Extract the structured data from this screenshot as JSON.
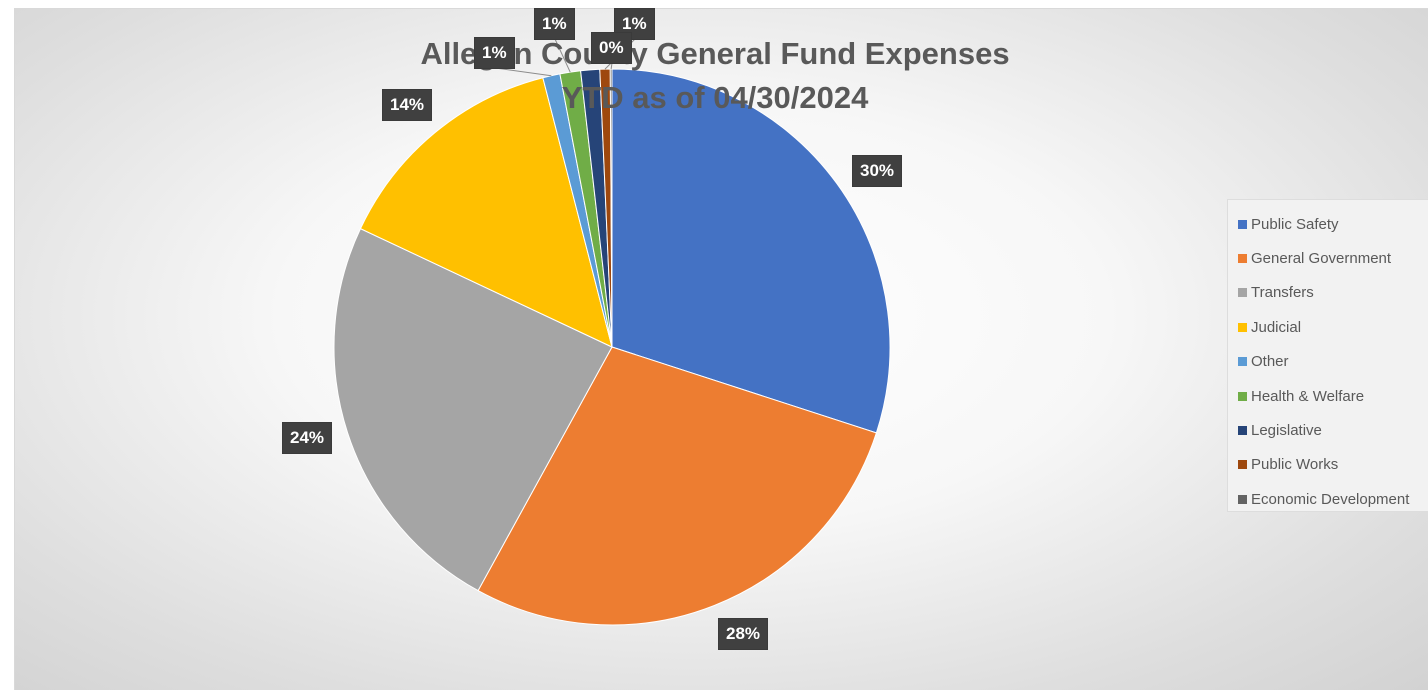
{
  "chart_data": {
    "type": "pie",
    "title_lines": [
      "Allegan County General Fund Expenses",
      "YTD as of 04/30/2024"
    ],
    "legend_position": "right",
    "slices": [
      {
        "name": "Public Safety",
        "value": 30,
        "label": "30%",
        "color": "#4472c4"
      },
      {
        "name": "General Government",
        "value": 28,
        "label": "28%",
        "color": "#ed7d31"
      },
      {
        "name": "Transfers",
        "value": 24,
        "label": "24%",
        "color": "#a5a5a5"
      },
      {
        "name": "Judicial",
        "value": 14,
        "label": "14%",
        "color": "#ffc000"
      },
      {
        "name": "Other",
        "value": 1,
        "label": "1%",
        "color": "#5b9bd5"
      },
      {
        "name": "Health & Welfare",
        "value": 1.2,
        "label": "1%",
        "color": "#70ad47"
      },
      {
        "name": "Legislative",
        "value": 1.1,
        "label": "1%",
        "color": "#264478"
      },
      {
        "name": "Public Works",
        "value": 0.6,
        "label": "1%",
        "color": "#9e480e"
      },
      {
        "name": "Economic Development",
        "value": 0.1,
        "label": "0%",
        "color": "#636363"
      }
    ]
  }
}
